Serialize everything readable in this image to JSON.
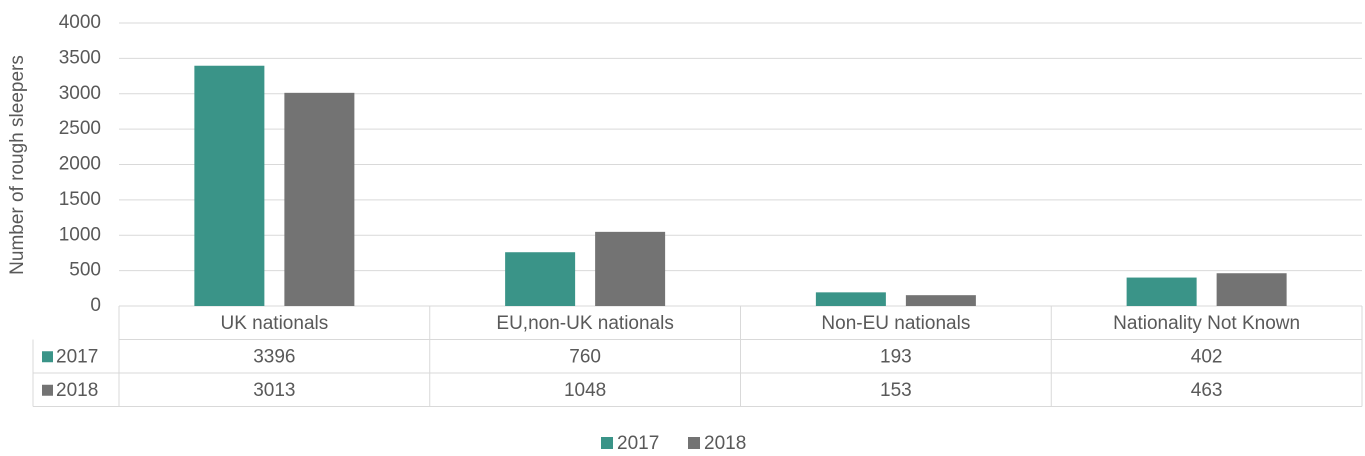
{
  "chart_data": {
    "type": "bar",
    "y_label": "Number of rough sleepers",
    "categories": [
      "UK nationals",
      "EU,non-UK nationals",
      "Non-EU nationals",
      "Nationality Not Known"
    ],
    "series": [
      {
        "name": "2017",
        "color": "#3a9488",
        "values": [
          3396,
          760,
          193,
          402
        ]
      },
      {
        "name": "2018",
        "color": "#737373",
        "values": [
          3013,
          1048,
          153,
          463
        ]
      }
    ],
    "ylim": [
      0,
      4000
    ],
    "yticks": [
      0,
      500,
      1000,
      1500,
      2000,
      2500,
      3000,
      3500,
      4000
    ],
    "grid": true,
    "legend": "bottom",
    "data_table": true
  }
}
